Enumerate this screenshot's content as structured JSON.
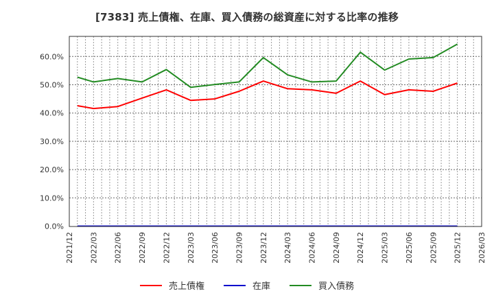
{
  "title": "[7383]  売上債権、在庫、買入債務の総資産に対する比率の推移",
  "legend": [
    {
      "label": "売上債権",
      "color": "#ff0000"
    },
    {
      "label": "在庫",
      "color": "#0000cc"
    },
    {
      "label": "買入債務",
      "color": "#228b22"
    }
  ],
  "chart_data": {
    "type": "line",
    "title": "[7383]  売上債権、在庫、買入債務の総資産に対する比率の推移",
    "xlabel": "",
    "ylabel": "",
    "ylim": [
      0,
      0.67
    ],
    "yticks": [
      "0.0%",
      "10.0%",
      "20.0%",
      "30.0%",
      "40.0%",
      "50.0%",
      "60.0%"
    ],
    "xticks": [
      "2021/12",
      "2022/03",
      "2022/06",
      "2022/09",
      "2022/12",
      "2023/03",
      "2023/06",
      "2023/09",
      "2023/12",
      "2024/03",
      "2024/06",
      "2024/09",
      "2024/12",
      "2025/03",
      "2025/06",
      "2025/09",
      "2025/12",
      "2026/03"
    ],
    "grid": true,
    "legend_position": "bottom",
    "x": [
      "2022/01",
      "2022/03",
      "2022/06",
      "2022/09",
      "2022/12",
      "2023/03",
      "2023/06",
      "2023/09",
      "2023/12",
      "2024/03",
      "2024/06",
      "2024/09",
      "2024/12",
      "2025/03",
      "2025/06",
      "2025/09",
      "2025/12"
    ],
    "series": [
      {
        "name": "売上債権",
        "color": "#ff0000",
        "values": [
          42.6,
          41.6,
          42.3,
          45.3,
          48.2,
          44.5,
          45.0,
          47.7,
          51.3,
          48.6,
          48.2,
          47.0,
          51.3,
          46.5,
          48.2,
          47.7,
          50.6
        ]
      },
      {
        "name": "在庫",
        "color": "#0000cc",
        "values": [
          0,
          0,
          0,
          0,
          0,
          0,
          0,
          0,
          0,
          0,
          0,
          0,
          0,
          0,
          0,
          0,
          0
        ]
      },
      {
        "name": "買入債務",
        "color": "#228b22",
        "values": [
          52.7,
          51.0,
          52.2,
          51.0,
          55.4,
          49.1,
          50.1,
          51.0,
          59.6,
          53.5,
          51.0,
          51.3,
          61.5,
          55.2,
          59.1,
          59.6,
          64.4
        ]
      }
    ]
  }
}
